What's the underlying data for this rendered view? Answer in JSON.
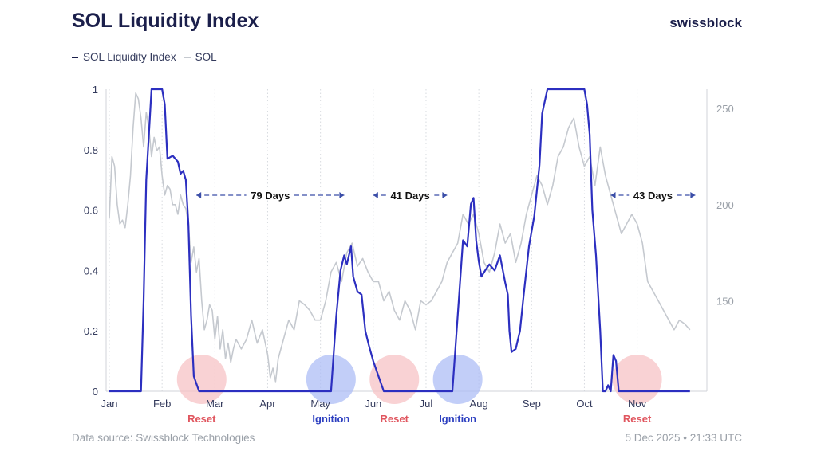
{
  "header": {
    "title": "SOL Liquidity Index",
    "brand": "swissblock"
  },
  "footer": {
    "source": "Data source: Swissblock Technologies",
    "timestamp": "5 Dec 2025 • 21:33 UTC"
  },
  "colors": {
    "liquidity": "#2c2fc0",
    "sol": "#c5c9cf",
    "reset_marker": "#f7c3c6",
    "ignition_marker": "#aebdf5",
    "reset_text": "#e0565f",
    "ignition_text": "#2c3fc0",
    "title": "#1b1f4b",
    "annotation": "#3b4ea8"
  },
  "chart_data": {
    "type": "line",
    "x_ticks": [
      "Jan",
      "Feb",
      "Mar",
      "Apr",
      "May",
      "Jun",
      "Jul",
      "Aug",
      "Sep",
      "Oct",
      "Nov"
    ],
    "x_tick_months": [
      0,
      1,
      2,
      3,
      4,
      5,
      6,
      7,
      8,
      9,
      10
    ],
    "xlim": [
      0,
      11.2
    ],
    "ylim": [
      0,
      1
    ],
    "y_ticks": [
      "0",
      "0.2",
      "0.4",
      "0.6",
      "0.8",
      "1"
    ],
    "y_tick_values": [
      0,
      0.2,
      0.4,
      0.6,
      0.8,
      1
    ],
    "y2lim": [
      103,
      260
    ],
    "y2_ticks": [
      "150",
      "200",
      "250"
    ],
    "y2_tick_values": [
      150,
      200,
      250
    ],
    "legend": "top-left",
    "series": [
      {
        "name": "SOL Liquidity Index",
        "axis": "left",
        "x": [
          0,
          0.6,
          0.65,
          0.7,
          0.8,
          0.9,
          0.95,
          1.0,
          1.05,
          1.1,
          1.2,
          1.3,
          1.35,
          1.4,
          1.45,
          1.5,
          1.55,
          1.6,
          1.7,
          1.8,
          1.9,
          2.0,
          3.0,
          4.0,
          4.2,
          4.3,
          4.38,
          4.45,
          4.5,
          4.58,
          4.62,
          4.7,
          4.78,
          4.85,
          4.92,
          5.0,
          5.1,
          5.2,
          5.5,
          6.0,
          6.3,
          6.5,
          6.62,
          6.7,
          6.78,
          6.85,
          6.9,
          6.95,
          7.0,
          7.05,
          7.12,
          7.2,
          7.3,
          7.4,
          7.5,
          7.55,
          7.58,
          7.62,
          7.7,
          7.78,
          7.85,
          7.95,
          8.05,
          8.15,
          8.2,
          8.3,
          8.35,
          9.0,
          9.05,
          9.1,
          9.15,
          9.22,
          9.3,
          9.35,
          9.4,
          9.45,
          9.5,
          9.55,
          9.6,
          9.65,
          10.0,
          11.0
        ],
        "values": [
          0,
          0,
          0.3,
          0.7,
          1,
          1,
          1,
          1,
          0.95,
          0.77,
          0.78,
          0.76,
          0.72,
          0.73,
          0.7,
          0.55,
          0.25,
          0.05,
          0,
          0,
          0,
          0,
          0,
          0,
          0,
          0.25,
          0.4,
          0.45,
          0.42,
          0.48,
          0.38,
          0.33,
          0.32,
          0.2,
          0.15,
          0.1,
          0.05,
          0,
          0,
          0,
          0,
          0,
          0.3,
          0.5,
          0.48,
          0.62,
          0.64,
          0.5,
          0.43,
          0.38,
          0.4,
          0.42,
          0.4,
          0.45,
          0.36,
          0.32,
          0.2,
          0.13,
          0.14,
          0.2,
          0.32,
          0.48,
          0.58,
          0.75,
          0.92,
          1,
          1,
          1,
          0.95,
          0.85,
          0.6,
          0.45,
          0.2,
          0,
          0,
          0.02,
          0,
          0.12,
          0.1,
          0,
          0,
          0
        ]
      },
      {
        "name": "SOL",
        "axis": "right",
        "x": [
          0,
          0.05,
          0.1,
          0.15,
          0.2,
          0.25,
          0.3,
          0.35,
          0.4,
          0.45,
          0.5,
          0.55,
          0.6,
          0.65,
          0.7,
          0.75,
          0.8,
          0.85,
          0.9,
          0.95,
          1.0,
          1.05,
          1.1,
          1.15,
          1.2,
          1.25,
          1.3,
          1.35,
          1.4,
          1.45,
          1.5,
          1.55,
          1.6,
          1.65,
          1.7,
          1.75,
          1.8,
          1.85,
          1.9,
          1.95,
          2.0,
          2.05,
          2.1,
          2.15,
          2.2,
          2.25,
          2.3,
          2.35,
          2.4,
          2.5,
          2.6,
          2.7,
          2.8,
          2.9,
          3.0,
          3.05,
          3.1,
          3.15,
          3.2,
          3.3,
          3.4,
          3.5,
          3.6,
          3.7,
          3.8,
          3.9,
          4.0,
          4.1,
          4.2,
          4.3,
          4.4,
          4.5,
          4.6,
          4.7,
          4.8,
          4.9,
          5.0,
          5.1,
          5.2,
          5.3,
          5.4,
          5.5,
          5.6,
          5.7,
          5.8,
          5.9,
          6.0,
          6.1,
          6.2,
          6.3,
          6.4,
          6.5,
          6.6,
          6.7,
          6.8,
          6.9,
          7.0,
          7.1,
          7.2,
          7.3,
          7.4,
          7.5,
          7.6,
          7.7,
          7.8,
          7.9,
          8.0,
          8.1,
          8.2,
          8.3,
          8.4,
          8.5,
          8.6,
          8.7,
          8.8,
          8.9,
          9.0,
          9.1,
          9.2,
          9.3,
          9.4,
          9.5,
          9.6,
          9.7,
          9.8,
          9.9,
          10.0,
          10.1,
          10.2,
          10.3,
          10.4,
          10.5,
          10.6,
          10.7,
          10.8,
          10.9,
          11.0
        ],
        "values": [
          193,
          225,
          220,
          200,
          190,
          192,
          188,
          200,
          215,
          240,
          258,
          255,
          245,
          230,
          248,
          240,
          225,
          235,
          228,
          230,
          215,
          205,
          210,
          208,
          200,
          200,
          195,
          205,
          200,
          198,
          190,
          170,
          178,
          165,
          172,
          150,
          135,
          140,
          148,
          145,
          130,
          142,
          125,
          135,
          120,
          128,
          118,
          125,
          130,
          125,
          130,
          140,
          128,
          135,
          122,
          110,
          115,
          108,
          120,
          130,
          140,
          135,
          150,
          148,
          145,
          140,
          140,
          150,
          165,
          170,
          160,
          175,
          180,
          168,
          172,
          165,
          160,
          160,
          150,
          155,
          145,
          140,
          150,
          145,
          135,
          150,
          148,
          150,
          155,
          160,
          170,
          175,
          180,
          195,
          190,
          195,
          185,
          170,
          165,
          175,
          190,
          180,
          185,
          170,
          180,
          195,
          205,
          215,
          210,
          200,
          210,
          225,
          230,
          240,
          245,
          230,
          220,
          225,
          210,
          230,
          215,
          205,
          195,
          185,
          190,
          195,
          190,
          180,
          160,
          155,
          150,
          145,
          140,
          135,
          140,
          138,
          135
        ]
      }
    ],
    "annotations": [
      {
        "label": "79 Days",
        "x_start": 1.65,
        "x_end": 4.45
      },
      {
        "label": "41 Days",
        "x_start": 5.0,
        "x_end": 6.4
      },
      {
        "label": "43 Days",
        "x_start": 9.5,
        "x_end": 11.1
      }
    ],
    "markers": [
      {
        "label": "Reset",
        "kind": "reset",
        "x": 1.75
      },
      {
        "label": "Ignition",
        "kind": "ignition",
        "x": 4.2
      },
      {
        "label": "Reset",
        "kind": "reset",
        "x": 5.4
      },
      {
        "label": "Ignition",
        "kind": "ignition",
        "x": 6.6
      },
      {
        "label": "Reset",
        "kind": "reset",
        "x": 10.0
      }
    ]
  }
}
